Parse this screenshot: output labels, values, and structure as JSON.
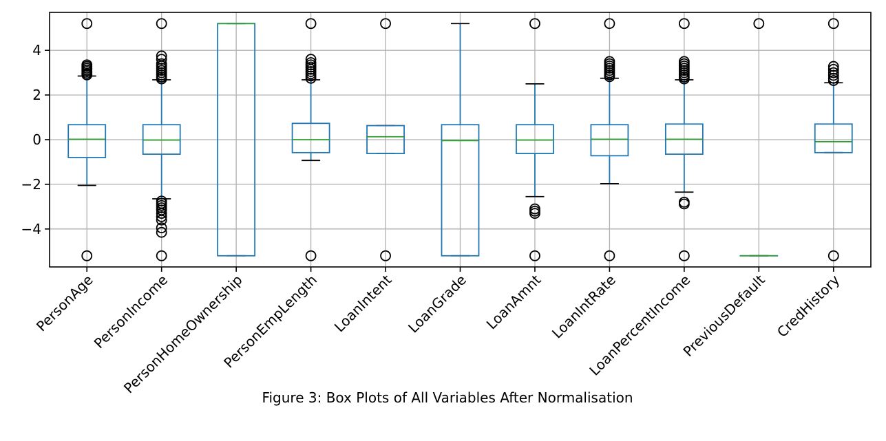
{
  "chart_data": {
    "type": "box",
    "title": "",
    "xlabel": "",
    "ylabel": "",
    "ylim": [
      -5.7,
      5.7
    ],
    "yticks": [
      -4,
      -2,
      0,
      2,
      4
    ],
    "ytick_labels": [
      "−4",
      "−2",
      "0",
      "2",
      "4"
    ],
    "grid": true,
    "colors": {
      "box": "#1f77b4",
      "median": "#2ca02c",
      "whisker": "#1f77b4",
      "cap": "#000000",
      "flier": "#000000",
      "grid": "#b0b0b0"
    },
    "categories": [
      "PersonAge",
      "PersonIncome",
      "PersonHomeOwnership",
      "PersonEmpLength",
      "LoanIntent",
      "LoanGrade",
      "LoanAmnt",
      "LoanIntRate",
      "LoanPercentIncome",
      "PreviousDefault",
      "CredHistory"
    ],
    "boxes": [
      {
        "q1": -0.8,
        "median": 0.02,
        "q3": 0.67,
        "whisker_low": -2.05,
        "whisker_high": 2.85,
        "fliers": [
          5.2,
          3.35,
          3.28,
          3.2,
          3.12,
          3.05,
          2.97,
          2.9,
          -5.2
        ]
      },
      {
        "q1": -0.65,
        "median": -0.02,
        "q3": 0.67,
        "whisker_low": -2.65,
        "whisker_high": 2.68,
        "fliers": [
          5.2,
          3.75,
          3.6,
          3.4,
          3.3,
          3.2,
          3.1,
          3.0,
          2.9,
          2.8,
          2.72,
          -2.75,
          -2.85,
          -2.95,
          -3.05,
          -3.15,
          -3.3,
          -3.45,
          -3.6,
          -3.95,
          -4.15,
          -5.2
        ]
      },
      {
        "q1": -5.2,
        "median": 5.2,
        "q3": 5.2,
        "whisker_low": -5.2,
        "whisker_high": 5.2,
        "fliers": []
      },
      {
        "q1": -0.58,
        "median": 0.0,
        "q3": 0.73,
        "whisker_low": -0.93,
        "whisker_high": 2.68,
        "fliers": [
          5.2,
          3.6,
          3.45,
          3.35,
          3.25,
          3.15,
          3.05,
          2.95,
          2.85,
          2.75,
          -5.2
        ]
      },
      {
        "q1": -0.62,
        "median": 0.13,
        "q3": 0.63,
        "whisker_low": -0.62,
        "whisker_high": 0.63,
        "fliers": [
          5.2,
          -5.2
        ]
      },
      {
        "q1": -5.2,
        "median": -0.04,
        "q3": 0.67,
        "whisker_low": -5.2,
        "whisker_high": 5.2,
        "fliers": []
      },
      {
        "q1": -0.62,
        "median": -0.02,
        "q3": 0.67,
        "whisker_low": -2.55,
        "whisker_high": 2.5,
        "fliers": [
          5.2,
          -3.1,
          -3.2,
          -3.3,
          -5.2
        ]
      },
      {
        "q1": -0.72,
        "median": 0.02,
        "q3": 0.67,
        "whisker_low": -1.97,
        "whisker_high": 2.75,
        "fliers": [
          5.2,
          3.5,
          3.4,
          3.3,
          3.2,
          3.1,
          3.0,
          2.9,
          2.82,
          -5.2
        ]
      },
      {
        "q1": -0.65,
        "median": 0.02,
        "q3": 0.7,
        "whisker_low": -2.35,
        "whisker_high": 2.68,
        "fliers": [
          5.2,
          3.5,
          3.4,
          3.3,
          3.2,
          3.1,
          3.0,
          2.9,
          2.8,
          2.72,
          -2.8,
          -2.88,
          -5.2
        ]
      },
      {
        "q1": -5.2,
        "median": -5.2,
        "q3": -5.2,
        "whisker_low": -5.2,
        "whisker_high": -5.2,
        "fliers": [
          5.2
        ]
      },
      {
        "q1": -0.58,
        "median": -0.09,
        "q3": 0.7,
        "whisker_low": -0.58,
        "whisker_high": 2.55,
        "fliers": [
          5.2,
          3.28,
          3.15,
          3.0,
          2.88,
          2.75,
          2.65,
          -5.2
        ]
      }
    ]
  },
  "caption": "Figure 3: Box Plots of All Variables After Normalisation"
}
